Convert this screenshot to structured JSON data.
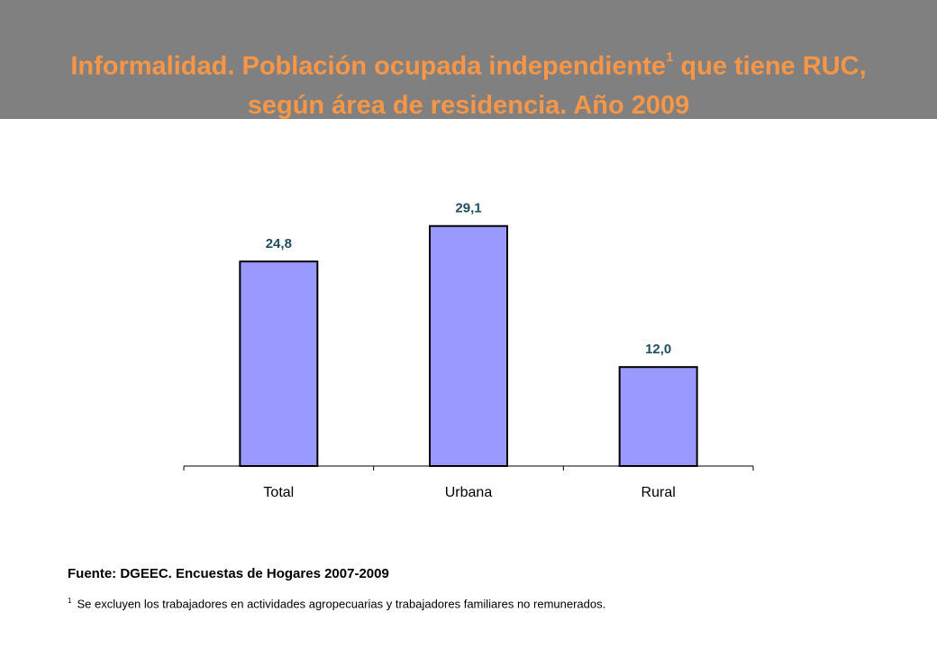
{
  "header": {
    "title_part1": "Informalidad. Población ocupada independiente",
    "title_sup": "1",
    "title_part2": " que tiene RUC,",
    "title_line2": "según área de residencia. Año 2009"
  },
  "chart_data": {
    "type": "bar",
    "categories": [
      "Total",
      "Urbana",
      "Rural"
    ],
    "values": [
      24.8,
      29.1,
      12.0
    ],
    "data_labels": [
      "24,8",
      "29,1",
      "12,0"
    ],
    "title": "Informalidad. Población ocupada independiente que tiene RUC, según área de residencia. Año 2009",
    "xlabel": "",
    "ylabel": "",
    "ylim": [
      0,
      35
    ],
    "grid": false,
    "legend": "none",
    "colors": {
      "bar_fill": "#9999FF",
      "bar_stroke": "#000000",
      "label": "#1F4E5F",
      "axis": "#000000"
    }
  },
  "footer": {
    "source": "Fuente: DGEEC. Encuestas de Hogares 2007-2009",
    "footnote_mark": "1",
    "footnote": "Se excluyen los trabajadores en actividades agropecuarias y trabajadores familiares no remunerados."
  }
}
